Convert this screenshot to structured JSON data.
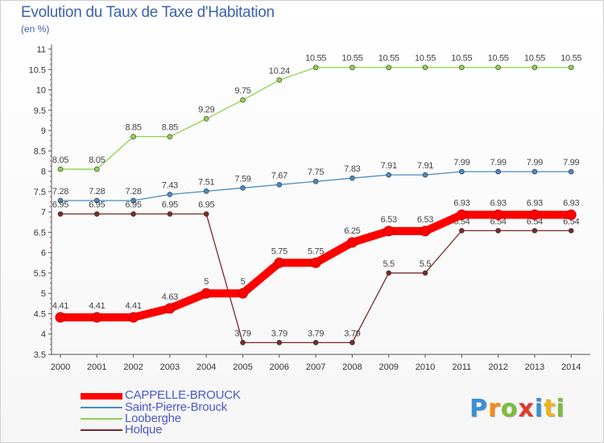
{
  "chart_data": {
    "type": "line",
    "title": "Evolution du Taux de Taxe d'Habitation",
    "subtitle": "(en %)",
    "xlabel": "",
    "ylabel": "",
    "categories": [
      "2000",
      "2001",
      "2002",
      "2003",
      "2004",
      "2005",
      "2006",
      "2007",
      "2008",
      "2009",
      "2010",
      "2011",
      "2012",
      "2013",
      "2014"
    ],
    "ylim": [
      3.5,
      11
    ],
    "yticks": [
      "3.5",
      "4",
      "4.5",
      "5",
      "5.5",
      "6",
      "6.5",
      "7",
      "7.5",
      "8",
      "8.5",
      "9",
      "9.5",
      "10",
      "10.5",
      "11"
    ],
    "grid": false,
    "legend_position": "bottom-left",
    "series": [
      {
        "name": "CAPPELLE-BROUCK",
        "color": "#ff0000",
        "values": [
          4.41,
          4.41,
          4.41,
          4.63,
          5,
          5,
          5.75,
          5.75,
          6.25,
          6.53,
          6.53,
          6.93,
          6.93,
          6.93,
          6.93
        ],
        "labels": [
          "4.41",
          "4.41",
          "4.41",
          "4.63",
          "5",
          "5",
          "5.75",
          "5.75",
          "6.25",
          "6.53",
          "6.53",
          "6.93",
          "6.93",
          "6.93",
          "6.93"
        ]
      },
      {
        "name": "Saint-Pierre-Brouck",
        "color": "#4a8bc2",
        "values": [
          7.28,
          7.28,
          7.28,
          7.43,
          7.51,
          7.59,
          7.67,
          7.75,
          7.83,
          7.91,
          7.91,
          7.99,
          7.99,
          7.99,
          7.99
        ],
        "labels": [
          "7.28",
          "7.28",
          "7.28",
          "7.43",
          "7.51",
          "7.59",
          "7.67",
          "7.75",
          "7.83",
          "7.91",
          "7.91",
          "7.99",
          "7.99",
          "7.99",
          "7.99"
        ]
      },
      {
        "name": "Looberghe",
        "color": "#8fd14f",
        "values": [
          8.05,
          8.05,
          8.85,
          8.85,
          9.29,
          9.75,
          10.24,
          10.55,
          10.55,
          10.55,
          10.55,
          10.55,
          10.55,
          10.55,
          10.55
        ],
        "labels": [
          "8.05",
          "8.05",
          "8.85",
          "8.85",
          "9.29",
          "9.75",
          "10.24",
          "10.55",
          "10.55",
          "10.55",
          "10.55",
          "10.55",
          "10.55",
          "10.55",
          "10.55"
        ]
      },
      {
        "name": "Holque",
        "color": "#7a2a2a",
        "values": [
          6.95,
          6.95,
          6.95,
          6.95,
          6.95,
          3.79,
          3.79,
          3.79,
          3.79,
          5.5,
          5.5,
          6.54,
          6.54,
          6.54,
          6.54
        ],
        "labels": [
          "6.95",
          "6.95",
          "6.95",
          "6.95",
          "6.95",
          "3.79",
          "3.79",
          "3.79",
          "3.79",
          "5.5",
          "5.5",
          "6.54",
          "6.54",
          "6.54",
          "6.54"
        ]
      }
    ]
  },
  "logo": {
    "letters": [
      {
        "ch": "P",
        "color": "#3a8fd6"
      },
      {
        "ch": "r",
        "color": "#f08a1c"
      },
      {
        "ch": "o",
        "color": "#7dbb3a"
      },
      {
        "ch": "x",
        "color": "#e23b2b"
      },
      {
        "ch": "i",
        "color": "#3a8fd6"
      },
      {
        "ch": "t",
        "color": "#f0b21c"
      },
      {
        "ch": "i",
        "color": "#7dbb3a"
      }
    ]
  }
}
